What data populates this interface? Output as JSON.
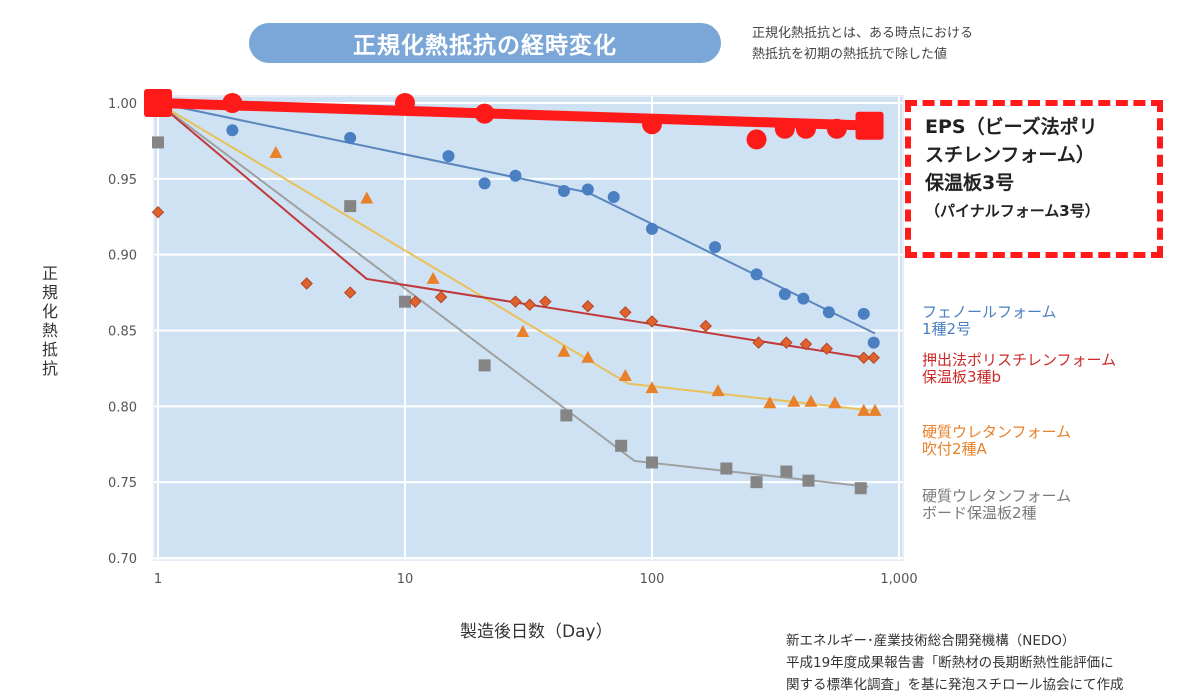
{
  "header": {
    "title": "正規化熱抵抗の経時変化",
    "note_lines": [
      "正規化熱抵抗とは、ある時点における",
      "熱抵抗を初期の熱抵抗で除した値"
    ]
  },
  "source_lines": [
    "新エネルギー･産業技術総合開発機構（NEDO）",
    "平成19年度成果報告書「断熱材の長期断熱性能評価に",
    "関する標準化調査」を基に発泡スチロール協会にて作成"
  ],
  "highlight": {
    "lines": [
      "EPS（ビーズ法ポリ",
      "スチレンフォーム）",
      "保温板3号"
    ],
    "sub": "（パイナルフォーム3号）",
    "color": "#ff1a1a"
  },
  "chart_data": {
    "type": "scatter",
    "title": "正規化熱抵抗の経時変化",
    "xlabel": "製造後日数（Day）",
    "ylabel": "正規化熱抵抗",
    "xscale": "log",
    "xlim": [
      1,
      1000
    ],
    "ylim": [
      0.7,
      1.0
    ],
    "xticks": [
      1,
      10,
      100,
      1000
    ],
    "xtick_labels": [
      "1",
      "10",
      "100",
      "1,000"
    ],
    "yticks": [
      0.7,
      0.75,
      0.8,
      0.85,
      0.9,
      0.95,
      1.0
    ],
    "ytick_labels": [
      "0.70",
      "0.75",
      "0.80",
      "0.85",
      "0.90",
      "0.95",
      "1.00"
    ],
    "grid": true,
    "legend_position": "right",
    "background": "#cfe2f3",
    "series": [
      {
        "name": "EPS（ビーズ法ポリスチレンフォーム）保温板3号（パイナルフォーム3号）",
        "color": "#ff1a1a",
        "marker": "circle",
        "line_width": "thick",
        "points": [
          [
            1,
            1.0
          ],
          [
            2,
            1.0
          ],
          [
            10,
            1.0
          ],
          [
            21,
            0.993
          ],
          [
            100,
            0.986
          ],
          [
            265,
            0.976
          ],
          [
            345,
            0.983
          ],
          [
            420,
            0.983
          ],
          [
            560,
            0.983
          ],
          [
            760,
            0.985
          ]
        ],
        "end_markers": "square",
        "trend": [
          [
            1,
            1.0
          ],
          [
            800,
            0.985
          ]
        ]
      },
      {
        "name": "フェノールフォーム 1種2号",
        "legend": [
          "フェノールフォーム",
          "1種2号"
        ],
        "color": "#4a7fc1",
        "line_color": "#5b86bd",
        "marker": "circle",
        "points": [
          [
            2,
            0.982
          ],
          [
            6,
            0.977
          ],
          [
            15,
            0.965
          ],
          [
            21,
            0.947
          ],
          [
            28,
            0.952
          ],
          [
            44,
            0.942
          ],
          [
            55,
            0.943
          ],
          [
            70,
            0.938
          ],
          [
            100,
            0.917
          ],
          [
            180,
            0.905
          ],
          [
            265,
            0.887
          ],
          [
            345,
            0.874
          ],
          [
            410,
            0.871
          ],
          [
            520,
            0.862
          ],
          [
            720,
            0.861
          ],
          [
            790,
            0.842
          ]
        ],
        "trend": [
          [
            1,
            1.0
          ],
          [
            55,
            0.941
          ],
          [
            800,
            0.848
          ]
        ]
      },
      {
        "name": "押出法ポリスチレンフォーム 保温板3種b",
        "legend": [
          "押出法ポリスチレンフォーム",
          "保温板3種b"
        ],
        "color": "#e2622d",
        "line_color": "#c0393b",
        "marker": "diamond",
        "points": [
          [
            1,
            0.928
          ],
          [
            4,
            0.881
          ],
          [
            6,
            0.875
          ],
          [
            11,
            0.869
          ],
          [
            14,
            0.872
          ],
          [
            28,
            0.869
          ],
          [
            32,
            0.867
          ],
          [
            37,
            0.869
          ],
          [
            55,
            0.866
          ],
          [
            78,
            0.862
          ],
          [
            100,
            0.856
          ],
          [
            165,
            0.853
          ],
          [
            270,
            0.842
          ],
          [
            350,
            0.842
          ],
          [
            420,
            0.841
          ],
          [
            510,
            0.838
          ],
          [
            720,
            0.832
          ],
          [
            790,
            0.832
          ]
        ],
        "trend": [
          [
            1,
            1.0
          ],
          [
            7,
            0.884
          ],
          [
            800,
            0.831
          ]
        ]
      },
      {
        "name": "硬質ウレタンフォーム 吹付2種A",
        "legend": [
          "硬質ウレタンフォーム",
          "吹付2種A"
        ],
        "color": "#e8812a",
        "line_color": "#e8c15a",
        "marker": "triangle",
        "points": [
          [
            3,
            0.967
          ],
          [
            7,
            0.937
          ],
          [
            13,
            0.884
          ],
          [
            30,
            0.849
          ],
          [
            44,
            0.836
          ],
          [
            55,
            0.832
          ],
          [
            78,
            0.82
          ],
          [
            100,
            0.812
          ],
          [
            185,
            0.81
          ],
          [
            300,
            0.802
          ],
          [
            375,
            0.803
          ],
          [
            440,
            0.803
          ],
          [
            550,
            0.802
          ],
          [
            720,
            0.797
          ],
          [
            800,
            0.797
          ]
        ],
        "trend": [
          [
            1,
            1.0
          ],
          [
            80,
            0.815
          ],
          [
            800,
            0.797
          ]
        ]
      },
      {
        "name": "硬質ウレタンフォーム ボード保温板2種",
        "legend": [
          "硬質ウレタンフォーム",
          "ボード保温板2種"
        ],
        "color": "#858585",
        "line_color": "#a0a0a0",
        "marker": "square",
        "points": [
          [
            1,
            0.974
          ],
          [
            6,
            0.932
          ],
          [
            10,
            0.869
          ],
          [
            21,
            0.827
          ],
          [
            45,
            0.794
          ],
          [
            75,
            0.774
          ],
          [
            100,
            0.763
          ],
          [
            200,
            0.759
          ],
          [
            265,
            0.75
          ],
          [
            350,
            0.757
          ],
          [
            430,
            0.751
          ],
          [
            700,
            0.746
          ]
        ],
        "trend": [
          [
            1,
            1.0
          ],
          [
            85,
            0.764
          ],
          [
            750,
            0.747
          ]
        ]
      }
    ]
  }
}
